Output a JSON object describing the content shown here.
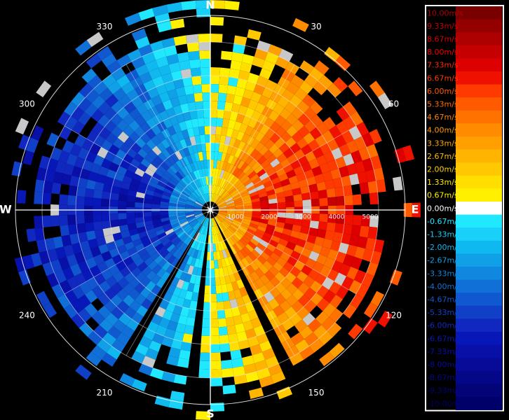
{
  "chart_data": {
    "type": "heatmap",
    "subtype": "radar-velocity-ppi",
    "cardinals": [
      "N",
      "E",
      "S",
      "W"
    ],
    "bearing_ticks": [
      30,
      60,
      120,
      150,
      210,
      240,
      300,
      330
    ],
    "range_ticks": [
      1000,
      2000,
      3000,
      4000,
      5000
    ],
    "range_max": 5000,
    "colorbar": {
      "labels": [
        "10.00m/s",
        "9.33m/s",
        "8.67m/s",
        "8.00m/s",
        "7.33m/s",
        "6.67m/s",
        "6.00m/s",
        "5.33m/s",
        "4.67m/s",
        "4.00m/s",
        "3.33m/s",
        "2.67m/s",
        "2.00m/s",
        "1.33m/s",
        "0.67m/s",
        "0.00m/s",
        "-0.67m/s",
        "-1.33m/s",
        "-2.00m/s",
        "-2.67m/s",
        "-3.33m/s",
        "-4.00m/s",
        "-4.67m/s",
        "-5.33m/s",
        "-6.00m/s",
        "-6.67m/s",
        "-7.33m/s",
        "-8.00m/s",
        "-8.67m/s",
        "-9.33m/s",
        "-10.00m/s"
      ],
      "values": [
        10,
        9.33,
        8.67,
        8,
        7.33,
        6.67,
        6,
        5.33,
        4.67,
        4,
        3.33,
        2.67,
        2,
        1.33,
        0.67,
        0,
        -0.67,
        -1.33,
        -2,
        -2.67,
        -3.33,
        -4,
        -4.67,
        -5.33,
        -6,
        -6.67,
        -7.33,
        -8,
        -8.67,
        -9.33,
        -10
      ],
      "colors": [
        "#7a0000",
        "#940000",
        "#ad0000",
        "#c40000",
        "#dc0000",
        "#f01000",
        "#ff3a00",
        "#ff5a00",
        "#ff7200",
        "#ff8c00",
        "#ffa000",
        "#ffb400",
        "#ffc800",
        "#ffde00",
        "#fff000",
        "#ffffff",
        "#20e8ff",
        "#18d0f8",
        "#10b8f0",
        "#10a0e8",
        "#1088e0",
        "#1070d8",
        "#1058d0",
        "#1040c8",
        "#1028c0",
        "#0818b8",
        "#0810a8",
        "#060c98",
        "#040888",
        "#020478",
        "#00006a"
      ],
      "label_colors": [
        "#b00000",
        "#c80000",
        "#dc0000",
        "#f00000",
        "#ff2800",
        "#ff3c00",
        "#ff5a00",
        "#ff6e00",
        "#ff8200",
        "#ff9600",
        "#ffaa00",
        "#ffbe00",
        "#ffd200",
        "#ffe600",
        "#fff200",
        "#ffffff",
        "#20e8ff",
        "#18d0f8",
        "#10b8f0",
        "#10a0e8",
        "#1088e0",
        "#1070d8",
        "#1058d0",
        "#1040c8",
        "#1028c0",
        "#0818b8",
        "#0810a8",
        "#060c98",
        "#040888",
        "#020478",
        "#00006a"
      ]
    },
    "gaps": [
      {
        "from_bearing": 151,
        "to_bearing": 154
      },
      {
        "from_bearing": 147,
        "to_bearing": 148
      },
      {
        "from_bearing": 209,
        "to_bearing": 212
      },
      {
        "from_bearing": 186,
        "to_bearing": 188
      }
    ],
    "grid": true
  }
}
